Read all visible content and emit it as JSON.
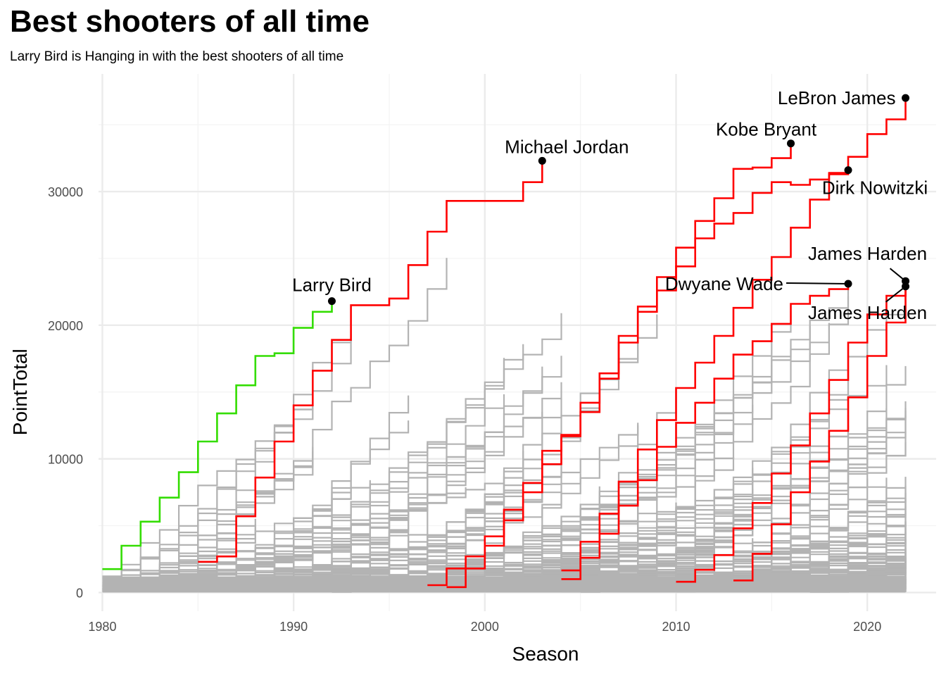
{
  "chart_data": {
    "type": "line",
    "step": true,
    "title": "Best shooters of all time",
    "subtitle": "Larry Bird is Hanging in with the best shooters of all time",
    "xlabel": "Season",
    "ylabel": "PointTotal",
    "xlim": [
      1979.8,
      2023.6
    ],
    "ylim": [
      -1400,
      38800
    ],
    "xticks": [
      1980,
      1990,
      2000,
      2010,
      2020
    ],
    "yticks": [
      0,
      10000,
      20000,
      30000
    ],
    "grid": true,
    "legend": "none",
    "colors": {
      "background_series": "#b3b3b3",
      "highlight": "#ff0000",
      "larry_bird": "#33dd00",
      "grid": "#ebebeb"
    },
    "series": [
      {
        "name": "Larry Bird",
        "color": "#33dd00",
        "x": [
          1980,
          1981,
          1982,
          1983,
          1984,
          1985,
          1986,
          1987,
          1988,
          1989,
          1990,
          1991,
          1992
        ],
        "y": [
          1750,
          3500,
          5300,
          7100,
          9000,
          11300,
          13400,
          15500,
          17700,
          17900,
          19800,
          21000,
          21800
        ]
      },
      {
        "name": "Michael Jordan",
        "color": "#ff0000",
        "x": [
          1985,
          1986,
          1987,
          1988,
          1989,
          1990,
          1991,
          1992,
          1993,
          1994,
          1995,
          1996,
          1997,
          1998,
          1999,
          2000,
          2001,
          2002,
          2003
        ],
        "y": [
          2300,
          2700,
          5700,
          8600,
          11300,
          14000,
          16600,
          18900,
          21500,
          21500,
          22000,
          24500,
          27000,
          29300,
          29300,
          29300,
          29300,
          30700,
          32300
        ]
      },
      {
        "name": "Kobe Bryant",
        "color": "#ff0000",
        "x": [
          1997,
          1998,
          1999,
          2000,
          2001,
          2002,
          2003,
          2004,
          2005,
          2006,
          2007,
          2008,
          2009,
          2010,
          2011,
          2012,
          2013,
          2014,
          2015,
          2016
        ],
        "y": [
          550,
          1800,
          2700,
          4200,
          6200,
          8200,
          10600,
          11700,
          13500,
          16000,
          19200,
          21400,
          23600,
          25800,
          27800,
          29500,
          31700,
          31800,
          32500,
          33600
        ]
      },
      {
        "name": "LeBron James",
        "color": "#ff0000",
        "x": [
          2004,
          2005,
          2006,
          2007,
          2008,
          2009,
          2010,
          2011,
          2012,
          2013,
          2014,
          2015,
          2016,
          2017,
          2018,
          2019,
          2020,
          2021,
          2022
        ],
        "y": [
          1650,
          3800,
          5900,
          8300,
          10700,
          12900,
          15300,
          17200,
          19200,
          21300,
          23400,
          25100,
          27300,
          29400,
          31400,
          32600,
          34300,
          35400,
          37000
        ]
      },
      {
        "name": "Dirk Nowitzki",
        "color": "#ff0000",
        "x": [
          1998,
          1999,
          2000,
          2001,
          2002,
          2003,
          2004,
          2005,
          2006,
          2007,
          2008,
          2009,
          2010,
          2011,
          2012,
          2013,
          2014,
          2015,
          2016,
          2017,
          2018,
          2019
        ],
        "y": [
          400,
          1800,
          3500,
          5400,
          7500,
          9600,
          11800,
          14200,
          16400,
          18700,
          21000,
          22600,
          24400,
          26500,
          27600,
          28400,
          29900,
          30700,
          30500,
          30900,
          31300,
          31600
        ]
      },
      {
        "name": "Dwyane Wade",
        "color": "#ff0000",
        "x": [
          2004,
          2005,
          2006,
          2007,
          2008,
          2009,
          2010,
          2011,
          2012,
          2013,
          2014,
          2015,
          2016,
          2017,
          2018,
          2019
        ],
        "y": [
          1000,
          2600,
          4400,
          6500,
          8400,
          10900,
          12700,
          14200,
          16000,
          17800,
          18800,
          20100,
          21600,
          22200,
          22700,
          23100
        ]
      },
      {
        "name": "James Harden",
        "color": "#ff0000",
        "x": [
          2010,
          2011,
          2012,
          2013,
          2014,
          2015,
          2016,
          2017,
          2018,
          2019,
          2020,
          2021,
          2022
        ],
        "y": [
          800,
          1700,
          2800,
          4800,
          6700,
          8900,
          11000,
          13400,
          15900,
          18700,
          20800,
          22200,
          23300
        ]
      },
      {
        "name": "James Harden",
        "color": "#ff0000",
        "x": [
          2013,
          2014,
          2015,
          2016,
          2017,
          2018,
          2019,
          2020,
          2021,
          2022
        ],
        "y": [
          900,
          2900,
          5100,
          7500,
          9800,
          12100,
          14600,
          17700,
          20200,
          22900
        ]
      }
    ],
    "annotations": [
      {
        "label": "Larry Bird",
        "x": 1992,
        "y": 21800
      },
      {
        "label": "Michael Jordan",
        "x": 2003,
        "y": 32300
      },
      {
        "label": "Kobe Bryant",
        "x": 2016,
        "y": 33600
      },
      {
        "label": "LeBron James",
        "x": 2022,
        "y": 37000
      },
      {
        "label": "Dirk Nowitzki",
        "x": 2019,
        "y": 31600
      },
      {
        "label": "Dwyane Wade",
        "x": 2019,
        "y": 23100
      },
      {
        "label": "James Harden",
        "x": 2022,
        "y": 23300
      },
      {
        "label": "James Harden",
        "x": 2022,
        "y": 22900
      }
    ]
  }
}
